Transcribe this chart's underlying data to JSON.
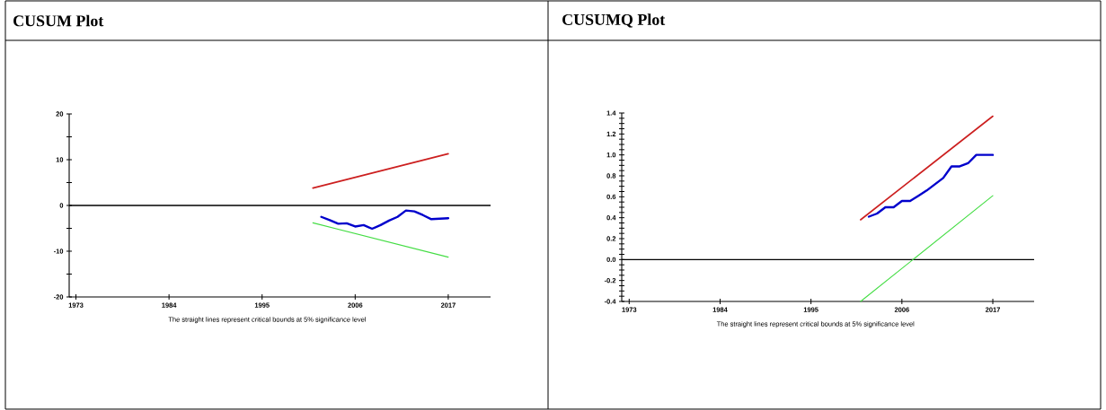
{
  "chart_data": [
    {
      "type": "line",
      "title": "CUSUM Plot",
      "annotations": [
        "The straight lines represent critical bounds at 5% significance level"
      ],
      "xlim": [
        1972.2,
        2022
      ],
      "xticks": [
        1973,
        1984,
        1995,
        2006,
        2017
      ],
      "ylim": [
        -20,
        20
      ],
      "yticks": [
        -20,
        {
          "value": -15,
          "label": null
        },
        -10,
        {
          "value": -5,
          "label": null
        },
        0,
        {
          "value": 5,
          "label": null
        },
        10,
        {
          "value": 15,
          "label": null
        },
        20
      ],
      "ref_lines": [
        {
          "axis": "y",
          "value": 0,
          "color": "#000000"
        }
      ],
      "series": [
        {
          "color": "#0000cc",
          "x": [
            2002,
            2003,
            2004,
            2005,
            2006,
            2007,
            2008,
            2009,
            2010,
            2011,
            2012,
            2013,
            2014,
            2015,
            2016,
            2017
          ],
          "values": [
            -2.5,
            -3.2,
            -4.0,
            -3.9,
            -4.6,
            -4.3,
            -5.1,
            -4.3,
            -3.3,
            -2.5,
            -1.1,
            -1.3,
            -2.1,
            -3.0,
            -2.9,
            -2.8
          ]
        },
        {
          "color": "#cc1f1f",
          "x": [
            2001,
            2017
          ],
          "values": [
            3.8,
            11.3
          ]
        },
        {
          "color": "#44dd44",
          "x": [
            2001,
            2017
          ],
          "values": [
            -3.8,
            -11.3
          ]
        }
      ]
    },
    {
      "type": "line",
      "title": "CUSUMQ Plot",
      "annotations": [
        "The straight lines represent critical bounds at 5% significance level"
      ],
      "xlim": [
        1972.1,
        2022
      ],
      "xticks": [
        1973,
        1984,
        1995,
        2006,
        2017
      ],
      "ylim": [
        -0.4,
        1.4
      ],
      "yticks": [
        -0.4,
        {
          "value": -0.35,
          "label": null
        },
        {
          "value": -0.3,
          "label": null
        },
        {
          "value": -0.25,
          "label": null
        },
        -0.2,
        {
          "value": -0.15,
          "label": null
        },
        {
          "value": -0.1,
          "label": null
        },
        {
          "value": -0.05,
          "label": null
        },
        {
          "value": 0,
          "label": "0.0"
        },
        {
          "value": 0.05,
          "label": null
        },
        {
          "value": 0.1,
          "label": null
        },
        {
          "value": 0.15,
          "label": null
        },
        0.2,
        {
          "value": 0.25,
          "label": null
        },
        {
          "value": 0.3,
          "label": null
        },
        {
          "value": 0.35,
          "label": null
        },
        0.4,
        {
          "value": 0.45,
          "label": null
        },
        {
          "value": 0.5,
          "label": null
        },
        {
          "value": 0.55,
          "label": null
        },
        0.6,
        {
          "value": 0.65,
          "label": null
        },
        {
          "value": 0.7,
          "label": null
        },
        {
          "value": 0.75,
          "label": null
        },
        0.8,
        {
          "value": 0.85,
          "label": null
        },
        {
          "value": 0.9,
          "label": null
        },
        {
          "value": 0.95,
          "label": null
        },
        {
          "value": 1,
          "label": "1.0"
        },
        {
          "value": 1.05,
          "label": null
        },
        {
          "value": 1.1,
          "label": null
        },
        {
          "value": 1.15,
          "label": null
        },
        1.2,
        {
          "value": 1.25,
          "label": null
        },
        {
          "value": 1.3,
          "label": null
        },
        {
          "value": 1.35,
          "label": null
        },
        1.4
      ],
      "ref_lines": [
        {
          "axis": "y",
          "value": 0,
          "color": "#000000"
        }
      ],
      "series": [
        {
          "color": "#0000cc",
          "x": [
            2002,
            2003,
            2004,
            2005,
            2006,
            2007,
            2008,
            2009,
            2010,
            2011,
            2012,
            2013,
            2014,
            2015,
            2016,
            2017
          ],
          "values": [
            0.41,
            0.44,
            0.5,
            0.5,
            0.56,
            0.56,
            0.61,
            0.66,
            0.72,
            0.78,
            0.89,
            0.89,
            0.92,
            1.0,
            1.0,
            1.0
          ]
        },
        {
          "color": "#cc1f1f",
          "x": [
            2001,
            2017
          ],
          "values": [
            0.38,
            1.37
          ]
        },
        {
          "color": "#44dd44",
          "x": [
            2001,
            2017
          ],
          "values": [
            -0.4,
            0.61
          ]
        }
      ]
    }
  ]
}
